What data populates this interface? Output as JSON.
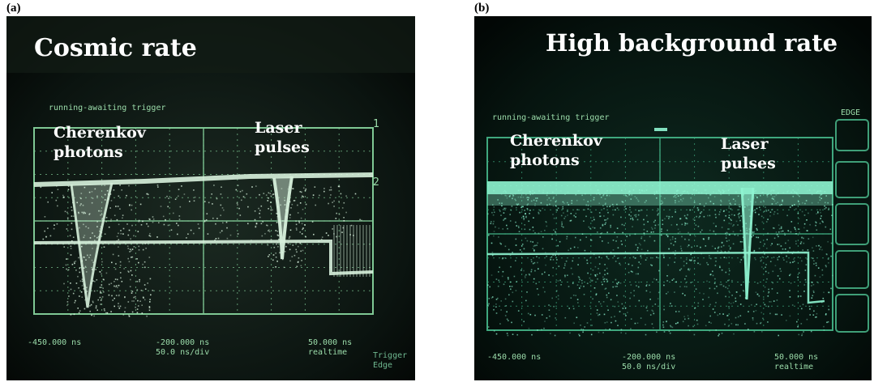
{
  "panels": [
    {
      "label": "(a)",
      "title": "Cosmic rate",
      "annotations": {
        "cherenkov_line1": "Cherenkov",
        "cherenkov_line2": "photons",
        "laser_line1": "Laser",
        "laser_line2": "pulses"
      },
      "scope_readouts": {
        "trigger": "running-awaiting trigger",
        "time_left": "-450.000 ns",
        "time_center": "-200.000 ns",
        "div": "50.0 ns/div",
        "time_right": "50.000 ns",
        "mode": "realtime",
        "trigger_label": "Trigger",
        "edge_label": "Edge",
        "ch1": "1",
        "ch2": "2"
      },
      "trace_color": "#d8f2dd"
    },
    {
      "label": "(b)",
      "title": "High background rate",
      "annotations": {
        "cherenkov_line1": "Cherenkov",
        "cherenkov_line2": "photons",
        "laser_line1": "Laser",
        "laser_line2": "pulses"
      },
      "scope_readouts": {
        "trigger": "running-awaiting trigger",
        "edge": "EDGE",
        "time_left": "-450.000 ns",
        "time_center": "-200.000 ns",
        "div": "50.0 ns/div",
        "time_right": "50.000 ns",
        "mode": "realtime"
      },
      "trace_color": "#8ff5d2"
    }
  ]
}
